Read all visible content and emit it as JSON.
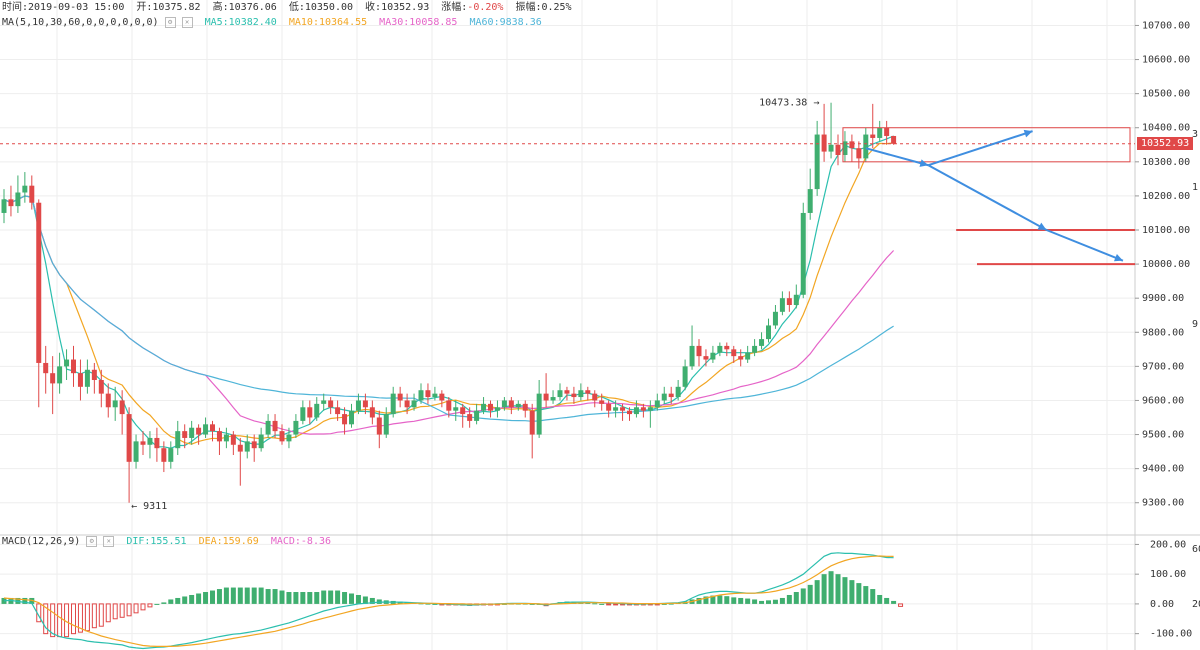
{
  "header": {
    "time_label": "时间:2019-09-03 15:00",
    "open_label": "开:10375.82",
    "high_label": "高:10376.06",
    "low_label": "低:10350.00",
    "close_label": "收:10352.93",
    "change_label": "涨幅:",
    "change_value": "-0.20%",
    "amplitude_label": "振幅:0.25%"
  },
  "ma_legend": {
    "title": "MA(5,10,30,60,0,0,0,0,0,0)",
    "items": [
      {
        "label": "MA5:10382.40",
        "color": "#2bbfae"
      },
      {
        "label": "MA10:10364.55",
        "color": "#f2a623"
      },
      {
        "label": "MA30:10058.85",
        "color": "#e564c8"
      },
      {
        "label": "MA60:9838.36",
        "color": "#4fb5d8"
      }
    ]
  },
  "macd_legend": {
    "title": "MACD(12,26,9)",
    "items": [
      {
        "label": "DIF:155.51",
        "color": "#2bbfae"
      },
      {
        "label": "DEA:159.69",
        "color": "#f2a623"
      },
      {
        "label": "MACD:-8.36",
        "color": "#e564c8"
      }
    ]
  },
  "annotations": {
    "high_label": "10473.38",
    "low_label": "9311",
    "current_price": "10352.93"
  },
  "colors": {
    "up": "#3fae6f",
    "down": "#e04848",
    "grid": "#eeeeee",
    "arrow": "#3f8ee0",
    "box": "#e04848"
  },
  "chart_data": [
    {
      "type": "candlestick",
      "price_axis": {
        "ticks": [
          "10700.00",
          "10600.00",
          "10500.00",
          "10400.00",
          "10300.00",
          "10200.00",
          "10100.00",
          "10000.00",
          "9900.00",
          "9800.00",
          "9700.00",
          "9600.00",
          "9500.00",
          "9400.00",
          "9300.00"
        ],
        "range": [
          9220,
          10760
        ]
      },
      "right_edge_partial_ticks": [
        "3",
        "1",
        "9",
        "60",
        "20"
      ],
      "candles": [
        [
          10150,
          10190,
          10120,
          10220
        ],
        [
          10190,
          10170,
          10140,
          10230
        ],
        [
          10170,
          10210,
          10150,
          10260
        ],
        [
          10210,
          10230,
          10180,
          10270
        ],
        [
          10230,
          10180,
          10160,
          10260
        ],
        [
          10180,
          9710,
          9580,
          10190
        ],
        [
          9710,
          9680,
          9620,
          9760
        ],
        [
          9680,
          9650,
          9560,
          9730
        ],
        [
          9650,
          9700,
          9620,
          9740
        ],
        [
          9700,
          9720,
          9660,
          9750
        ],
        [
          9720,
          9680,
          9640,
          9760
        ],
        [
          9680,
          9640,
          9600,
          9720
        ],
        [
          9640,
          9690,
          9620,
          9720
        ],
        [
          9690,
          9660,
          9620,
          9710
        ],
        [
          9660,
          9620,
          9580,
          9690
        ],
        [
          9620,
          9580,
          9550,
          9650
        ],
        [
          9580,
          9600,
          9540,
          9640
        ],
        [
          9600,
          9560,
          9500,
          9630
        ],
        [
          9560,
          9420,
          9300,
          9580
        ],
        [
          9420,
          9480,
          9400,
          9500
        ],
        [
          9480,
          9470,
          9440,
          9510
        ],
        [
          9470,
          9490,
          9430,
          9510
        ],
        [
          9490,
          9460,
          9420,
          9520
        ],
        [
          9460,
          9420,
          9390,
          9480
        ],
        [
          9420,
          9460,
          9400,
          9480
        ],
        [
          9460,
          9510,
          9440,
          9540
        ],
        [
          9510,
          9490,
          9460,
          9530
        ],
        [
          9490,
          9520,
          9470,
          9540
        ],
        [
          9520,
          9500,
          9470,
          9530
        ],
        [
          9500,
          9530,
          9490,
          9550
        ],
        [
          9530,
          9510,
          9480,
          9540
        ],
        [
          9510,
          9480,
          9440,
          9520
        ],
        [
          9480,
          9500,
          9460,
          9520
        ],
        [
          9500,
          9470,
          9440,
          9510
        ],
        [
          9470,
          9450,
          9350,
          9490
        ],
        [
          9450,
          9480,
          9430,
          9500
        ],
        [
          9480,
          9460,
          9420,
          9500
        ],
        [
          9460,
          9500,
          9450,
          9520
        ],
        [
          9500,
          9540,
          9490,
          9560
        ],
        [
          9540,
          9510,
          9490,
          9560
        ],
        [
          9510,
          9480,
          9470,
          9530
        ],
        [
          9480,
          9500,
          9460,
          9520
        ],
        [
          9500,
          9540,
          9490,
          9560
        ],
        [
          9540,
          9580,
          9530,
          9600
        ],
        [
          9580,
          9550,
          9530,
          9600
        ],
        [
          9550,
          9590,
          9540,
          9610
        ],
        [
          9590,
          9600,
          9570,
          9620
        ],
        [
          9600,
          9580,
          9560,
          9610
        ],
        [
          9580,
          9560,
          9540,
          9600
        ],
        [
          9560,
          9530,
          9500,
          9580
        ],
        [
          9530,
          9570,
          9520,
          9590
        ],
        [
          9570,
          9600,
          9560,
          9620
        ],
        [
          9600,
          9580,
          9560,
          9620
        ],
        [
          9580,
          9550,
          9530,
          9600
        ],
        [
          9550,
          9500,
          9460,
          9570
        ],
        [
          9500,
          9560,
          9490,
          9580
        ],
        [
          9560,
          9620,
          9550,
          9640
        ],
        [
          9620,
          9600,
          9580,
          9640
        ],
        [
          9600,
          9580,
          9560,
          9620
        ],
        [
          9580,
          9600,
          9570,
          9620
        ],
        [
          9600,
          9630,
          9590,
          9650
        ],
        [
          9630,
          9610,
          9590,
          9650
        ],
        [
          9610,
          9620,
          9600,
          9640
        ],
        [
          9620,
          9600,
          9580,
          9630
        ],
        [
          9600,
          9570,
          9550,
          9610
        ],
        [
          9570,
          9580,
          9540,
          9600
        ],
        [
          9580,
          9560,
          9520,
          9590
        ],
        [
          9560,
          9540,
          9520,
          9580
        ],
        [
          9540,
          9570,
          9530,
          9590
        ],
        [
          9570,
          9590,
          9560,
          9610
        ],
        [
          9590,
          9570,
          9550,
          9600
        ],
        [
          9570,
          9580,
          9550,
          9600
        ],
        [
          9580,
          9600,
          9570,
          9610
        ],
        [
          9600,
          9580,
          9560,
          9610
        ],
        [
          9580,
          9590,
          9570,
          9600
        ],
        [
          9590,
          9570,
          9550,
          9600
        ],
        [
          9570,
          9500,
          9430,
          9590
        ],
        [
          9500,
          9620,
          9490,
          9660
        ],
        [
          9620,
          9600,
          9580,
          9680
        ],
        [
          9600,
          9610,
          9590,
          9630
        ],
        [
          9610,
          9630,
          9600,
          9650
        ],
        [
          9630,
          9620,
          9600,
          9640
        ],
        [
          9620,
          9610,
          9590,
          9640
        ],
        [
          9610,
          9630,
          9600,
          9650
        ],
        [
          9630,
          9620,
          9600,
          9640
        ],
        [
          9620,
          9600,
          9580,
          9630
        ],
        [
          9600,
          9590,
          9570,
          9620
        ],
        [
          9590,
          9570,
          9550,
          9600
        ],
        [
          9570,
          9580,
          9550,
          9600
        ],
        [
          9580,
          9570,
          9540,
          9590
        ],
        [
          9570,
          9560,
          9540,
          9580
        ],
        [
          9560,
          9580,
          9550,
          9600
        ],
        [
          9580,
          9570,
          9550,
          9590
        ],
        [
          9570,
          9580,
          9520,
          9600
        ],
        [
          9580,
          9600,
          9570,
          9620
        ],
        [
          9600,
          9620,
          9590,
          9640
        ],
        [
          9620,
          9610,
          9590,
          9640
        ],
        [
          9610,
          9640,
          9600,
          9660
        ],
        [
          9640,
          9700,
          9630,
          9720
        ],
        [
          9700,
          9760,
          9690,
          9820
        ],
        [
          9760,
          9730,
          9700,
          9780
        ],
        [
          9730,
          9720,
          9700,
          9750
        ],
        [
          9720,
          9740,
          9710,
          9760
        ],
        [
          9740,
          9760,
          9730,
          9770
        ],
        [
          9760,
          9750,
          9730,
          9770
        ],
        [
          9750,
          9730,
          9710,
          9760
        ],
        [
          9730,
          9720,
          9700,
          9750
        ],
        [
          9720,
          9740,
          9710,
          9760
        ],
        [
          9740,
          9760,
          9730,
          9780
        ],
        [
          9760,
          9780,
          9750,
          9800
        ],
        [
          9780,
          9820,
          9770,
          9840
        ],
        [
          9820,
          9860,
          9810,
          9880
        ],
        [
          9860,
          9900,
          9850,
          9920
        ],
        [
          9900,
          9880,
          9860,
          9920
        ],
        [
          9880,
          9910,
          9870,
          9940
        ],
        [
          9910,
          10150,
          9900,
          10180
        ],
        [
          10150,
          10220,
          10130,
          10280
        ],
        [
          10220,
          10380,
          10200,
          10420
        ],
        [
          10380,
          10330,
          10300,
          10470
        ],
        [
          10330,
          10350,
          10310,
          10473.38
        ],
        [
          10350,
          10320,
          10290,
          10380
        ],
        [
          10320,
          10360,
          10300,
          10390
        ],
        [
          10360,
          10340,
          10300,
          10380
        ],
        [
          10340,
          10310,
          10280,
          10360
        ],
        [
          10310,
          10380,
          10300,
          10400
        ],
        [
          10380,
          10370,
          10340,
          10470
        ],
        [
          10370,
          10400,
          10360,
          10420
        ],
        [
          10400,
          10375.82,
          10350,
          10420
        ],
        [
          10375.82,
          10352.93,
          10350,
          10376.06
        ]
      ],
      "ma_window": [
        5,
        10,
        30,
        60
      ],
      "horizontal_levels": [
        10100,
        10000
      ],
      "target_box": [
        10300,
        10400
      ],
      "arrows_path": [
        [
          124,
          10340
        ],
        [
          133,
          10290
        ],
        [
          148,
          10390
        ]
      ],
      "arrows_path2": [
        [
          133,
          10290
        ],
        [
          150,
          10100
        ],
        [
          161,
          10010
        ]
      ],
      "high_marker": {
        "index": 117,
        "value": 10473.38
      },
      "low_marker": {
        "index": 18,
        "value": 9311
      }
    },
    {
      "type": "bar",
      "series_label": "MACD",
      "y_axis": {
        "ticks": [
          "200.00",
          "100.00",
          "0.00",
          "-100.00"
        ],
        "range": [
          -155,
          225
        ]
      },
      "dif": [
        10,
        12,
        8,
        5,
        2,
        -40,
        -80,
        -100,
        -110,
        -115,
        -118,
        -120,
        -125,
        -128,
        -130,
        -132,
        -135,
        -138,
        -145,
        -148,
        -150,
        -148,
        -146,
        -145,
        -142,
        -138,
        -134,
        -130,
        -125,
        -120,
        -115,
        -110,
        -106,
        -102,
        -100,
        -96,
        -92,
        -88,
        -82,
        -76,
        -70,
        -64,
        -56,
        -48,
        -40,
        -32,
        -24,
        -18,
        -12,
        -8,
        -4,
        0,
        2,
        4,
        6,
        6,
        6,
        6,
        5,
        4,
        3,
        2,
        1,
        0,
        -1,
        -2,
        -3,
        -4,
        -3,
        -2,
        -1,
        0,
        1,
        2,
        2,
        2,
        1,
        0,
        -4,
        0,
        3,
        5,
        6,
        6,
        6,
        5,
        4,
        3,
        2,
        1,
        0,
        -1,
        -1,
        0,
        1,
        2,
        3,
        4,
        8,
        20,
        30,
        36,
        40,
        42,
        42,
        40,
        38,
        36,
        36,
        40,
        48,
        56,
        64,
        74,
        86,
        100,
        120,
        140,
        160,
        170,
        172,
        170,
        170,
        168,
        166,
        164,
        160,
        156,
        155.51
      ],
      "dea": [
        20,
        18,
        16,
        14,
        12,
        4,
        -12,
        -28,
        -45,
        -60,
        -72,
        -82,
        -92,
        -100,
        -108,
        -114,
        -120,
        -125,
        -130,
        -135,
        -140,
        -142,
        -143,
        -143,
        -143,
        -142,
        -140,
        -138,
        -135,
        -132,
        -128,
        -124,
        -120,
        -116,
        -112,
        -108,
        -104,
        -100,
        -96,
        -92,
        -86,
        -80,
        -74,
        -68,
        -60,
        -54,
        -48,
        -42,
        -36,
        -30,
        -24,
        -18,
        -14,
        -10,
        -6,
        -4,
        -2,
        0,
        1,
        2,
        2,
        2,
        2,
        1,
        1,
        0,
        0,
        -1,
        -1,
        -1,
        -1,
        -1,
        0,
        0,
        1,
        1,
        1,
        0,
        -1,
        -1,
        0,
        1,
        2,
        3,
        4,
        4,
        4,
        4,
        3,
        3,
        2,
        1,
        1,
        1,
        1,
        1,
        2,
        2,
        4,
        8,
        14,
        20,
        25,
        30,
        33,
        35,
        36,
        36,
        36,
        37,
        39,
        43,
        48,
        54,
        62,
        72,
        84,
        98,
        114,
        128,
        138,
        146,
        152,
        156,
        158,
        160,
        161,
        160,
        159.69
      ],
      "macd": [
        20,
        20,
        20,
        20,
        20,
        -60,
        -100,
        -110,
        -110,
        -110,
        -100,
        -95,
        -90,
        -80,
        -75,
        -60,
        -50,
        -45,
        -40,
        -30,
        -20,
        -10,
        0,
        5,
        15,
        20,
        25,
        30,
        35,
        40,
        45,
        50,
        55,
        55,
        55,
        55,
        55,
        55,
        50,
        50,
        45,
        40,
        40,
        40,
        40,
        40,
        45,
        45,
        45,
        40,
        35,
        30,
        25,
        20,
        15,
        12,
        10,
        8,
        6,
        4,
        2,
        1,
        0,
        -1,
        -2,
        -3,
        -4,
        -5,
        -4,
        -3,
        -2,
        -1,
        0,
        1,
        1,
        1,
        0,
        0,
        -6,
        2,
        6,
        8,
        8,
        6,
        4,
        2,
        0,
        -2,
        -2,
        -2,
        -2,
        -2,
        -3,
        -2,
        -1,
        0,
        1,
        3,
        8,
        15,
        20,
        25,
        28,
        28,
        26,
        22,
        20,
        18,
        15,
        10,
        12,
        14,
        20,
        30,
        40,
        52,
        64,
        80,
        100,
        110,
        100,
        90,
        80,
        70,
        60,
        50,
        30,
        20,
        10,
        -8.36
      ]
    }
  ]
}
